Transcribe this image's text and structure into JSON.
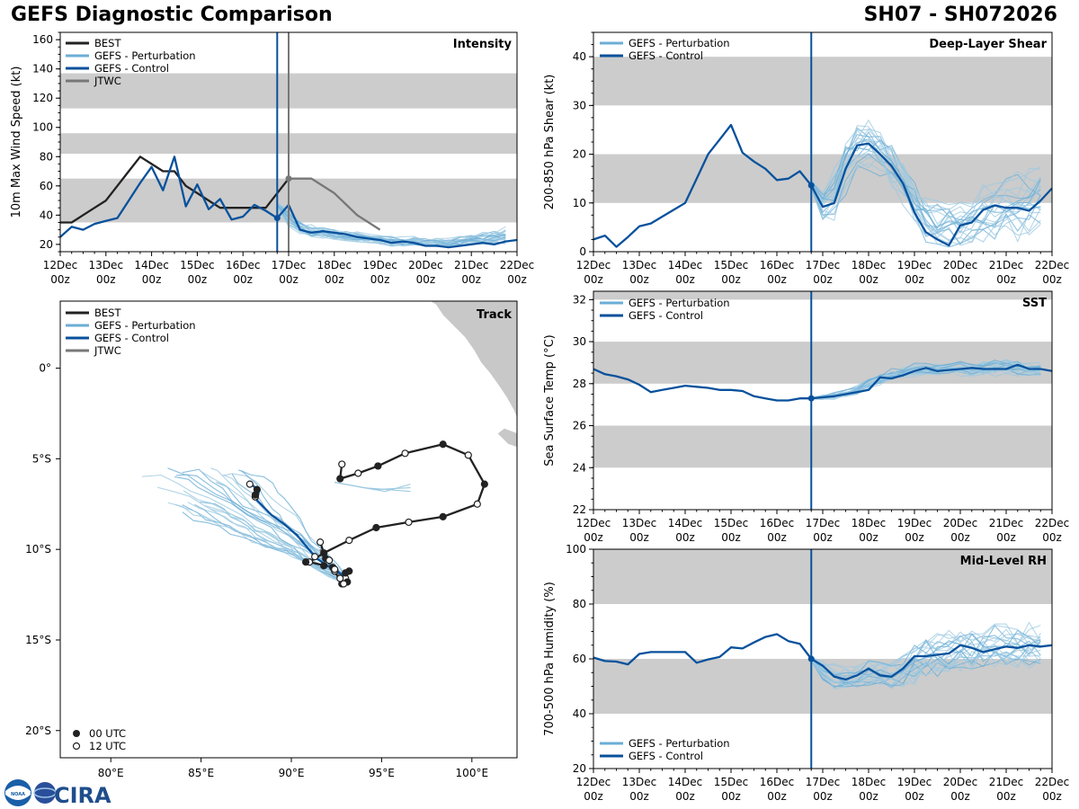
{
  "header": {
    "title": "GEFS Diagnostic Comparison",
    "storm_id": "SH07 - SH072026"
  },
  "logos": {
    "noaa": "NOAA",
    "cira": "CIRA"
  },
  "colors": {
    "best": "#222222",
    "perturbation": "#6baed6",
    "perturbation_light": "#9ecae1",
    "control": "#08519c",
    "jtwc": "#777777",
    "band": "#cccccc",
    "land": "#c8c8c8"
  },
  "time_axis": {
    "labels": [
      "12Dec\n00z",
      "13Dec\n00z",
      "14Dec\n00z",
      "15Dec\n00z",
      "16Dec\n00z",
      "17Dec\n00z",
      "18Dec\n00z",
      "19Dec\n00z",
      "20Dec\n00z",
      "21Dec\n00z",
      "22Dec\n00z"
    ],
    "init_day": 4.75,
    "jtwc_day": 5.0
  },
  "legend_full": [
    "BEST",
    "GEFS - Perturbation",
    "GEFS - Control",
    "JTWC"
  ],
  "legend_short": [
    "GEFS - Perturbation",
    "GEFS - Control"
  ],
  "chart_data": [
    {
      "id": "intensity",
      "type": "line",
      "title": "Intensity",
      "ylabel": "10m Max Wind Speed (kt)",
      "ylim": [
        15,
        165
      ],
      "yticks": [
        20,
        40,
        60,
        80,
        100,
        120,
        140,
        160
      ],
      "bands": [
        [
          35,
          65
        ],
        [
          82,
          96
        ],
        [
          113,
          137
        ]
      ],
      "series": [
        {
          "name": "BEST",
          "x": [
            0,
            0.25,
            0.5,
            0.75,
            1,
            1.25,
            1.5,
            1.75,
            2,
            2.25,
            2.5,
            2.75,
            3,
            3.25,
            3.5,
            3.75,
            4,
            4.25,
            4.5,
            4.75,
            5
          ],
          "values": [
            35,
            35,
            40,
            45,
            50,
            60,
            70,
            80,
            75,
            70,
            70,
            60,
            55,
            50,
            45,
            45,
            45,
            45,
            45,
            55,
            65
          ]
        },
        {
          "name": "GEFS - Control",
          "x": [
            0,
            0.25,
            0.5,
            0.75,
            1,
            1.25,
            1.5,
            1.75,
            2,
            2.25,
            2.5,
            2.75,
            3,
            3.25,
            3.5,
            3.75,
            4,
            4.25,
            4.5,
            4.75,
            5,
            5.25,
            5.5,
            5.75,
            6,
            6.25,
            6.5,
            6.75,
            7,
            7.25,
            7.5,
            7.75,
            8,
            8.25,
            8.5,
            8.75,
            9,
            9.25,
            9.5,
            9.75,
            10
          ],
          "values": [
            25,
            32,
            30,
            34,
            36,
            38,
            50,
            62,
            73,
            57,
            80,
            46,
            61,
            44,
            51,
            37,
            39,
            47,
            43,
            38,
            47,
            30,
            28,
            29,
            28,
            27,
            25,
            24,
            23,
            21,
            22,
            21,
            19,
            19,
            18,
            19,
            20,
            21,
            20,
            22,
            23
          ]
        },
        {
          "name": "JTWC",
          "x": [
            5,
            5.5,
            6,
            6.5,
            7
          ],
          "values": [
            65,
            65,
            55,
            40,
            30
          ]
        }
      ],
      "perturbation_range": {
        "mean": [
          47,
          38,
          31,
          29,
          28,
          27,
          26,
          25,
          24,
          23,
          22,
          22,
          22,
          21,
          21,
          21,
          22,
          23,
          24,
          25,
          26
        ],
        "spread": [
          4,
          5,
          4,
          4,
          3,
          3,
          3,
          3,
          3,
          3,
          3,
          3,
          3,
          3,
          3,
          3,
          3,
          4,
          4,
          4,
          5
        ]
      }
    },
    {
      "id": "shear",
      "type": "line",
      "title": "Deep-Layer Shear",
      "ylabel": "200-850 hPa Shear (kt)",
      "ylim": [
        0,
        45
      ],
      "yticks": [
        0,
        10,
        20,
        30,
        40
      ],
      "bands": [
        [
          10,
          20
        ],
        [
          30,
          40
        ]
      ],
      "series": [
        {
          "name": "GEFS - Control",
          "x": [
            0,
            0.25,
            0.5,
            0.75,
            1,
            1.25,
            1.5,
            1.75,
            2,
            2.25,
            2.5,
            2.75,
            3,
            3.25,
            3.5,
            3.75,
            4,
            4.25,
            4.5,
            4.75,
            5,
            5.25,
            5.5,
            5.75,
            6,
            6.25,
            6.5,
            6.75,
            7,
            7.25,
            7.5,
            7.75,
            8,
            8.25,
            8.5,
            8.75,
            9,
            9.25,
            9.5,
            9.75,
            10
          ],
          "values": [
            2.5,
            3.3,
            1,
            3,
            5.2,
            5.8,
            7.2,
            8.6,
            10,
            15,
            20,
            23,
            26,
            20.3,
            18.5,
            17,
            14.7,
            15,
            16.5,
            13.6,
            9.2,
            10,
            17,
            21.8,
            22.2,
            20,
            17.6,
            14,
            8,
            4,
            2.5,
            1.3,
            5.4,
            6,
            8.6,
            9.5,
            9,
            9,
            8.4,
            10.5,
            13
          ]
        }
      ],
      "perturbation_range": {
        "mean": [
          14,
          10,
          12,
          18,
          22,
          22,
          21,
          18,
          15,
          10,
          7,
          6,
          6,
          6,
          7,
          8,
          9,
          10,
          10,
          11,
          12
        ],
        "spread": [
          3,
          3,
          4,
          5,
          4,
          4,
          4,
          4,
          4,
          4,
          4,
          4,
          4,
          4,
          4,
          5,
          5,
          5,
          6,
          6,
          6
        ]
      }
    },
    {
      "id": "sst",
      "type": "line",
      "title": "SST",
      "ylabel": "Sea Surface Temp (°C)",
      "ylim": [
        22,
        32.4
      ],
      "yticks": [
        22,
        24,
        26,
        28,
        30,
        32
      ],
      "bands": [
        [
          24,
          26
        ],
        [
          28,
          30
        ],
        [
          32,
          32.4
        ]
      ],
      "series": [
        {
          "name": "GEFS - Control",
          "x": [
            0,
            0.25,
            0.5,
            0.75,
            1,
            1.25,
            1.5,
            1.75,
            2,
            2.25,
            2.5,
            2.75,
            3,
            3.25,
            3.5,
            3.75,
            4,
            4.25,
            4.5,
            4.75,
            5,
            5.25,
            5.5,
            5.75,
            6,
            6.25,
            6.5,
            6.75,
            7,
            7.25,
            7.5,
            7.75,
            8,
            8.25,
            8.5,
            8.75,
            9,
            9.25,
            9.5,
            9.75,
            10
          ],
          "values": [
            28.7,
            28.45,
            28.35,
            28.2,
            27.95,
            27.6,
            27.7,
            27.8,
            27.9,
            27.85,
            27.8,
            27.7,
            27.7,
            27.65,
            27.4,
            27.3,
            27.2,
            27.2,
            27.3,
            27.3,
            27.35,
            27.4,
            27.5,
            27.6,
            27.7,
            28.3,
            28.25,
            28.4,
            28.6,
            28.75,
            28.6,
            28.65,
            28.7,
            28.75,
            28.7,
            28.7,
            28.7,
            28.9,
            28.7,
            28.7,
            28.6
          ]
        }
      ],
      "perturbation_range": {
        "mean": [
          27.3,
          27.35,
          27.45,
          27.55,
          27.7,
          28.0,
          28.2,
          28.4,
          28.55,
          28.65,
          28.65,
          28.7,
          28.7,
          28.7,
          28.7,
          28.75,
          28.8,
          28.85,
          28.75,
          28.7,
          28.65
        ],
        "spread": [
          0.1,
          0.1,
          0.15,
          0.15,
          0.2,
          0.2,
          0.2,
          0.25,
          0.25,
          0.25,
          0.25,
          0.25,
          0.25,
          0.3,
          0.3,
          0.3,
          0.35,
          0.35,
          0.35,
          0.3,
          0.3
        ]
      }
    },
    {
      "id": "rh",
      "type": "line",
      "title": "Mid-Level RH",
      "ylabel": "700-500 hPa Humidity (%)",
      "ylim": [
        20,
        100
      ],
      "yticks": [
        20,
        40,
        60,
        80,
        100
      ],
      "bands": [
        [
          40,
          60
        ],
        [
          80,
          100
        ]
      ],
      "series": [
        {
          "name": "GEFS - Control",
          "x": [
            0,
            0.25,
            0.5,
            0.75,
            1,
            1.25,
            1.5,
            1.75,
            2,
            2.25,
            2.5,
            2.75,
            3,
            3.25,
            3.5,
            3.75,
            4,
            4.25,
            4.5,
            4.75,
            5,
            5.25,
            5.5,
            5.75,
            6,
            6.25,
            6.5,
            6.75,
            7,
            7.25,
            7.5,
            7.75,
            8,
            8.25,
            8.5,
            8.75,
            9,
            9.25,
            9.5,
            9.75,
            10
          ],
          "values": [
            60.5,
            59.2,
            59,
            58,
            61.8,
            62.5,
            62.5,
            62.5,
            62.5,
            58.6,
            59.8,
            60.7,
            64.2,
            63.8,
            66,
            68,
            69,
            66.5,
            65.5,
            60,
            57.5,
            53.5,
            52.5,
            54,
            56.5,
            54,
            53.5,
            56.5,
            61,
            61,
            61.5,
            62,
            65,
            64,
            62.5,
            63.5,
            64.5,
            64,
            65,
            64.5,
            65
          ]
        }
      ],
      "perturbation_range": {
        "mean": [
          60,
          57,
          54,
          53,
          54,
          55,
          55,
          54,
          56,
          59,
          61,
          62,
          63,
          64,
          64,
          64,
          65,
          65,
          65,
          65,
          66
        ],
        "spread": [
          3,
          4,
          4,
          4,
          4,
          4,
          4,
          5,
          6,
          7,
          7,
          7,
          7,
          7,
          7,
          7,
          7,
          7,
          7,
          7,
          7
        ]
      }
    }
  ],
  "track": {
    "title": "Track",
    "legend": [
      "BEST",
      "GEFS - Perturbation",
      "GEFS - Control",
      "JTWC"
    ],
    "time_legend": [
      "00 UTC",
      "12 UTC"
    ],
    "lon_ticks": [
      "80°E",
      "85°E",
      "90°E",
      "95°E",
      "100°E"
    ],
    "lon_values": [
      80,
      85,
      90,
      95,
      100
    ],
    "lat_ticks": [
      "0°",
      "5°S",
      "10°S",
      "15°S",
      "20°S"
    ],
    "lat_values": [
      0,
      -5,
      -10,
      -15,
      -20
    ],
    "lon_range": [
      77.2,
      102.5
    ],
    "lat_range": [
      -21.5,
      3.7
    ],
    "best": [
      [
        92.8,
        -5.3
      ],
      [
        92.7,
        -6.1
      ],
      [
        93.7,
        -5.8
      ],
      [
        94.8,
        -5.4
      ],
      [
        96.3,
        -4.7
      ],
      [
        98.4,
        -4.2
      ],
      [
        99.8,
        -4.8
      ],
      [
        100.7,
        -6.4
      ],
      [
        100.3,
        -7.5
      ],
      [
        98.4,
        -8.2
      ],
      [
        96.5,
        -8.5
      ],
      [
        94.7,
        -8.8
      ],
      [
        93.2,
        -9.5
      ],
      [
        91.8,
        -10.2
      ],
      [
        91.0,
        -10.7
      ],
      [
        92.3,
        -11.0
      ],
      [
        93.0,
        -11.6
      ],
      [
        92.8,
        -11.9
      ],
      [
        92.4,
        -11.2
      ],
      [
        91.9,
        -10.5
      ],
      [
        91.6,
        -9.6
      ]
    ],
    "best_open": [
      1,
      0,
      1,
      0,
      1,
      0,
      1,
      0,
      1,
      0,
      1,
      0,
      1,
      0,
      1,
      0,
      1,
      0,
      1,
      0,
      1
    ],
    "control": [
      [
        87.8,
        -6.4
      ],
      [
        88.2,
        -6.8
      ],
      [
        88.1,
        -7.3
      ],
      [
        88.9,
        -8.1
      ],
      [
        89.6,
        -8.6
      ],
      [
        90.3,
        -9.2
      ],
      [
        90.8,
        -9.8
      ],
      [
        91.4,
        -10.5
      ],
      [
        92.0,
        -10.9
      ],
      [
        92.5,
        -11.2
      ],
      [
        93.0,
        -11.5
      ],
      [
        93.0,
        -11.8
      ]
    ],
    "jtwc": [
      [
        91.6,
        -10.0
      ],
      [
        91.9,
        -10.5
      ],
      [
        92.3,
        -11.0
      ],
      [
        92.8,
        -11.6
      ],
      [
        93.0,
        -11.9
      ]
    ],
    "scatter": [
      [
        93.0,
        -11.3
      ],
      [
        92.7,
        -11.6
      ],
      [
        93.1,
        -11.8
      ],
      [
        92.9,
        -11.9
      ],
      [
        93.2,
        -11.2
      ],
      [
        92.4,
        -11.1
      ],
      [
        91.8,
        -10.9
      ],
      [
        92.1,
        -10.6
      ],
      [
        90.8,
        -10.7
      ],
      [
        91.3,
        -10.4
      ],
      [
        88.0,
        -7.1
      ],
      [
        88.0,
        -7.0
      ],
      [
        87.7,
        -6.4
      ],
      [
        88.1,
        -6.7
      ]
    ],
    "scatter_open": [
      0,
      1,
      0,
      1,
      0,
      1,
      0,
      1,
      0,
      1,
      1,
      0,
      1,
      0
    ]
  }
}
